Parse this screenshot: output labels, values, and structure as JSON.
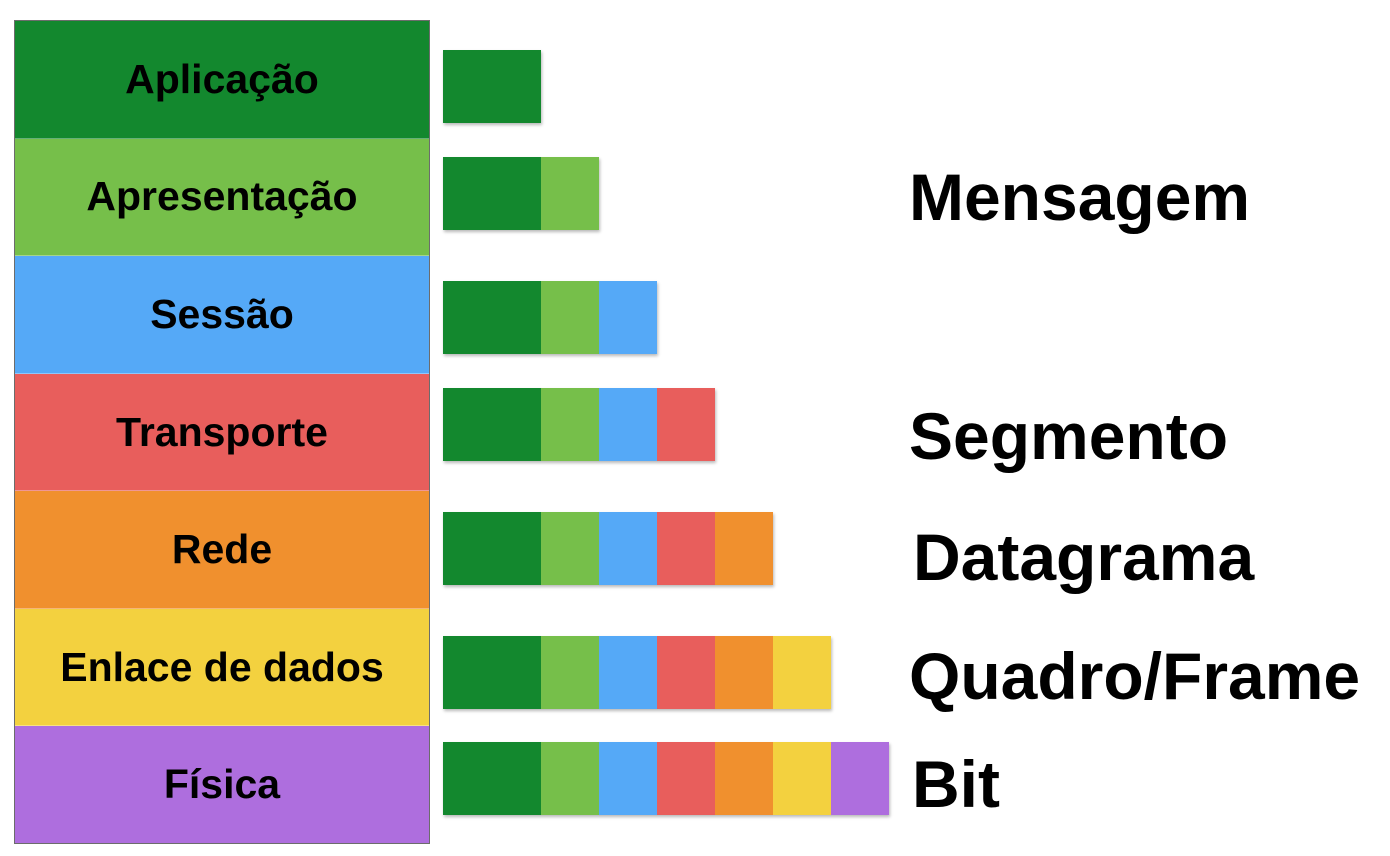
{
  "layers": [
    {
      "name": "Aplicação",
      "color": "#13882e"
    },
    {
      "name": "Apresentação",
      "color": "#76bf4a"
    },
    {
      "name": "Sessão",
      "color": "#55a9f7"
    },
    {
      "name": "Transporte",
      "color": "#e85e5c"
    },
    {
      "name": "Rede",
      "color": "#f0902e"
    },
    {
      "name": "Enlace de dados",
      "color": "#f3d13f"
    },
    {
      "name": "Física",
      "color": "#ae6ede"
    }
  ],
  "pdu_rows_segment_counts": [
    1,
    2,
    3,
    4,
    5,
    6,
    7
  ],
  "pdu_labels": {
    "mensagem": "Mensagem",
    "segmento": "Segmento",
    "datagrama": "Datagrama",
    "quadro": "Quadro/Frame",
    "bit": "Bit"
  }
}
